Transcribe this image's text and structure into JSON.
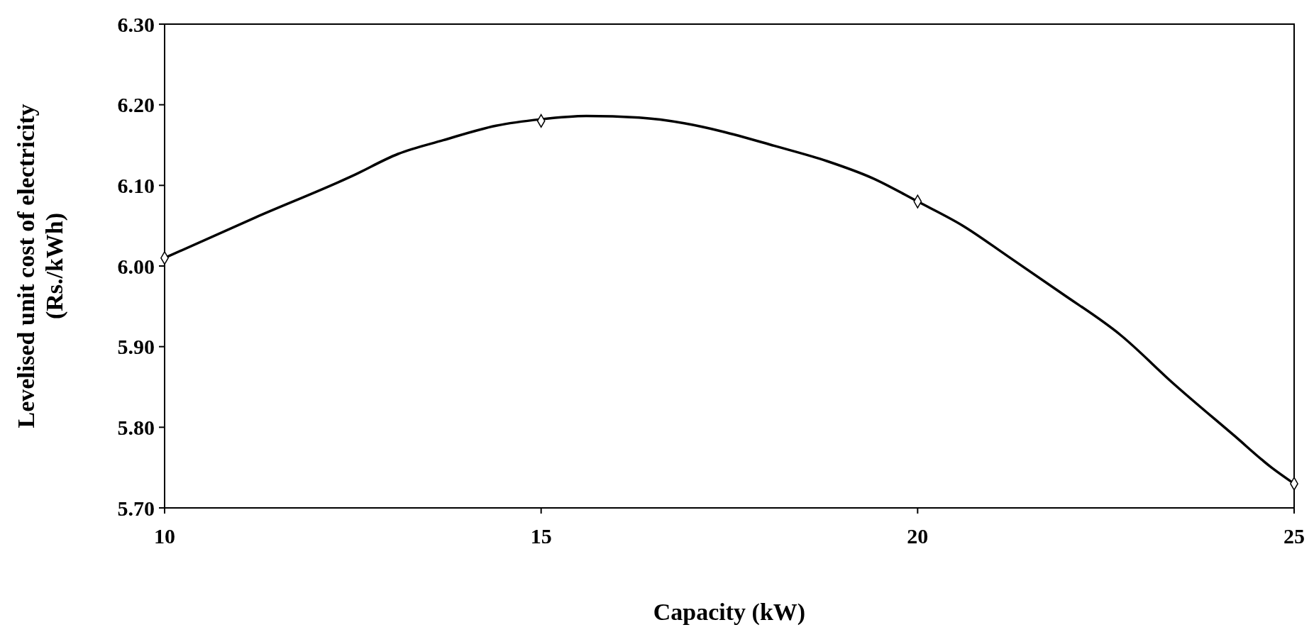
{
  "chart_data": {
    "type": "line",
    "xlabel": "Capacity (kW)",
    "ylabel": "Levelised unit cost of electricity\n(Rs./kWh)",
    "xlim": [
      10,
      25
    ],
    "xticks": [
      10,
      15,
      20,
      25
    ],
    "ylim": [
      5.7,
      6.3
    ],
    "yticks": [
      {
        "value": 5.7,
        "label": "5.70"
      },
      {
        "value": 5.8,
        "label": "5.80"
      },
      {
        "value": 5.9,
        "label": "5.90"
      },
      {
        "value": 6.0,
        "label": "6.00"
      },
      {
        "value": 6.1,
        "label": "6.10"
      },
      {
        "value": 6.2,
        "label": "6.20"
      },
      {
        "value": 6.3,
        "label": "6.30"
      }
    ],
    "grid": false,
    "series": [
      {
        "color": "#000000",
        "marker": "none",
        "line_style": "solid",
        "x": [
          10,
          11.2,
          12.5,
          13.1,
          13.7,
          14.4,
          15,
          15.6,
          16.3,
          16.9,
          17.4,
          18.1,
          18.8,
          19.4,
          20,
          20.6,
          21.2,
          21.9,
          22.7,
          23.4,
          24.2,
          24.7,
          25
        ],
        "values": [
          6.01,
          6.06,
          6.112,
          6.139,
          6.156,
          6.174,
          6.182,
          6.186,
          6.184,
          6.177,
          6.167,
          6.149,
          6.13,
          6.109,
          6.08,
          6.05,
          6.012,
          5.967,
          5.914,
          5.854,
          5.79,
          5.75,
          5.73
        ]
      },
      {
        "type": "scatter",
        "color": "#000000",
        "marker": "diamond",
        "x": [
          10,
          15,
          20,
          25
        ],
        "values": [
          6.01,
          6.18,
          6.08,
          5.73
        ]
      }
    ]
  }
}
